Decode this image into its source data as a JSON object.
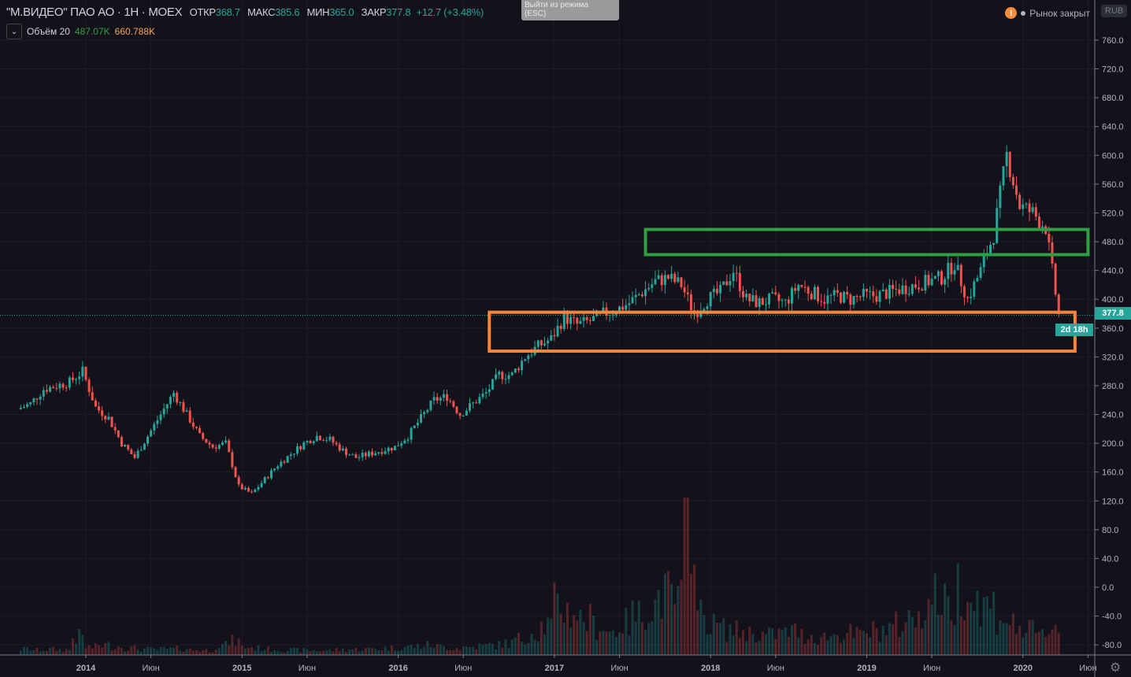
{
  "header": {
    "symbol": "\"М.ВИДЕО\" ПАО АО · 1Н · MOEX",
    "open_label": "ОТКР",
    "open": "368.7",
    "high_label": "МАКС",
    "high": "385.6",
    "low_label": "МИН",
    "low": "365.0",
    "close_label": "ЗАКР",
    "close": "377.8",
    "change": "+12.7 (+3.48%)"
  },
  "volume_legend": {
    "label": "Объём 20",
    "value1": "487.07K",
    "value2": "660.788K",
    "color1": "#26a69a",
    "color2": "#f7a35c"
  },
  "exit_hint": {
    "line1": "Выйти из режима",
    "line2": "(ESC)"
  },
  "market_status": "Рынок закрыт",
  "currency": "RUB",
  "price_tag": "377.8",
  "countdown_tag": "2d 18h",
  "chart_data": {
    "type": "candlestick",
    "ylim": [
      -100,
      780
    ],
    "y_ticks": [
      760,
      720,
      680,
      640,
      600,
      560,
      520,
      480,
      440,
      400,
      360,
      320,
      280,
      240,
      200,
      160,
      120,
      80,
      40,
      0,
      -40,
      -80
    ],
    "x_ticks": [
      {
        "t": "2014-01",
        "label": "2014"
      },
      {
        "t": "2014-06",
        "label": "Июн"
      },
      {
        "t": "2015-01",
        "label": "2015"
      },
      {
        "t": "2015-06",
        "label": "Июн"
      },
      {
        "t": "2016-01",
        "label": "2016"
      },
      {
        "t": "2016-06",
        "label": "Июн"
      },
      {
        "t": "2017-01",
        "label": "2017"
      },
      {
        "t": "2017-06",
        "label": "Июн"
      },
      {
        "t": "2018-01",
        "label": "2018"
      },
      {
        "t": "2018-06",
        "label": "Июн"
      },
      {
        "t": "2019-01",
        "label": "2019"
      },
      {
        "t": "2019-06",
        "label": "Июн"
      },
      {
        "t": "2020-01",
        "label": "2020"
      },
      {
        "t": "2020-06",
        "label": "Июн"
      }
    ],
    "start": "2013-08",
    "monthly_close": [
      255,
      275,
      280,
      285,
      300,
      250,
      235,
      200,
      180,
      210,
      240,
      270,
      240,
      210,
      195,
      200,
      140,
      130,
      150,
      170,
      185,
      200,
      210,
      205,
      190,
      180,
      185,
      190,
      195,
      210,
      235,
      260,
      265,
      240,
      255,
      270,
      295,
      295,
      320,
      335,
      345,
      375,
      365,
      370,
      380,
      385,
      395,
      410,
      425,
      430,
      420,
      380,
      400,
      410,
      440,
      400,
      395,
      400,
      395,
      420,
      410,
      400,
      405,
      400,
      405,
      405,
      410,
      415,
      420,
      425,
      430,
      450,
      400,
      440,
      490,
      600,
      530,
      520,
      500,
      378
    ],
    "monthly_volume_k": [
      300,
      250,
      280,
      260,
      900,
      400,
      500,
      450,
      350,
      300,
      280,
      300,
      320,
      260,
      240,
      500,
      700,
      400,
      350,
      300,
      260,
      250,
      240,
      230,
      260,
      280,
      300,
      320,
      350,
      400,
      450,
      500,
      420,
      380,
      400,
      450,
      500,
      600,
      800,
      1200,
      1500,
      2500,
      2200,
      1800,
      1500,
      1200,
      1600,
      2000,
      2500,
      3000,
      2800,
      8000,
      2000,
      1500,
      1300,
      1200,
      1100,
      1000,
      1100,
      1200,
      1000,
      900,
      1000,
      1100,
      1000,
      1200,
      1300,
      1500,
      1800,
      2500,
      3000,
      2500,
      3500,
      2800,
      2500,
      2000,
      1500,
      1200,
      1000,
      1500
    ],
    "last_price": 377.8,
    "zones": [
      {
        "name": "resistance",
        "from": "2017-08",
        "to": "2020-06",
        "top": 497,
        "bottom": 462,
        "color": "#2ea043"
      },
      {
        "name": "support",
        "from": "2016-08",
        "to": "2020-05",
        "top": 382,
        "bottom": 328,
        "color": "#f7863a"
      }
    ],
    "colors": {
      "up": "#26a69a",
      "down": "#ef5350"
    }
  }
}
